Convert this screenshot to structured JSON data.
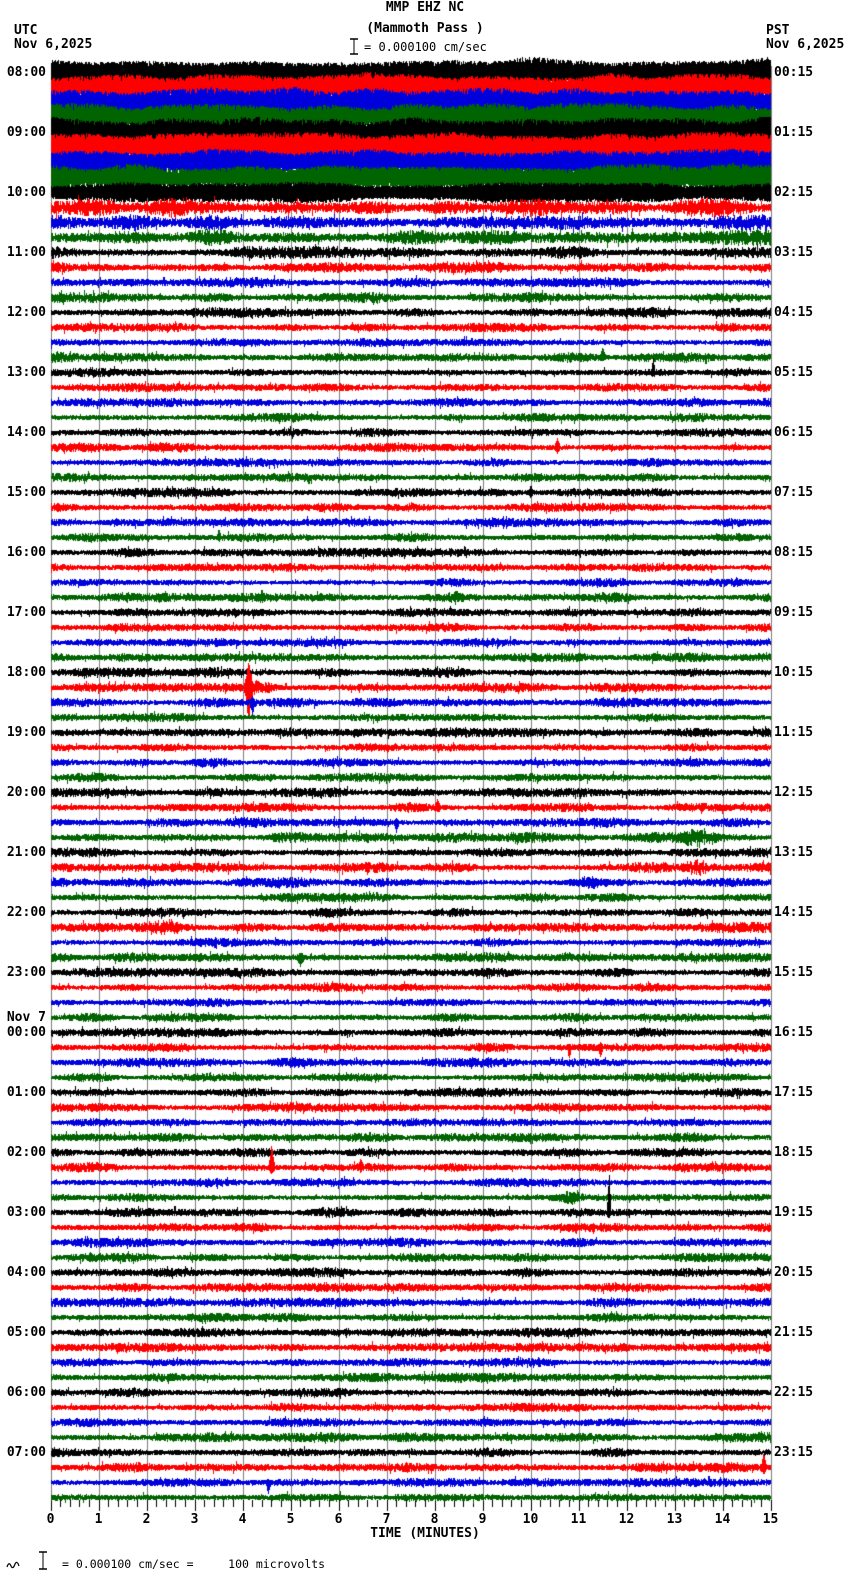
{
  "header": {
    "title": "MMP EHZ NC",
    "subtitle": "(Mammoth Pass )",
    "scale_label": "= 0.000100 cm/sec",
    "left_timezone": "UTC",
    "left_date": "Nov 6,2025",
    "right_timezone": "PST",
    "right_date": "Nov 6,2025"
  },
  "x_axis": {
    "title": "TIME (MINUTES)",
    "tick_labels": [
      "0",
      "1",
      "2",
      "3",
      "4",
      "5",
      "6",
      "7",
      "8",
      "9",
      "10",
      "11",
      "12",
      "13",
      "14",
      "15"
    ]
  },
  "footer": {
    "text": "= 0.000100 cm/sec =     100 microvolts"
  },
  "colors": {
    "traces": [
      "#000000",
      "#ff0000",
      "#0000dd",
      "#006400"
    ],
    "grid": "#7d7d7d",
    "background": "#ffffff",
    "text": "#000000"
  },
  "chart_data": {
    "type": "line",
    "kind": "helicorder-seismogram",
    "station": "MMP",
    "channel": "EHZ",
    "network": "NC",
    "station_name": "Mammoth Pass",
    "start_utc": "Nov 6,2025 08:00",
    "end_utc": "Nov 7,2025 08:00",
    "minutes_per_trace": 15,
    "traces_per_row": 4,
    "trace_color_order": [
      "black",
      "red",
      "blue",
      "green"
    ],
    "x_range_minutes": [
      0,
      15
    ],
    "grid": true,
    "amplitude_scale": "0.000100 cm/sec = 100 microvolts",
    "rows": [
      {
        "utc": "08:00",
        "pst": "00:15",
        "amps": [
          13,
          13,
          13,
          12.5
        ],
        "level": "very high"
      },
      {
        "utc": "09:00",
        "pst": "01:15",
        "amps": [
          14,
          13.5,
          12.5,
          11.5
        ],
        "level": "very high"
      },
      {
        "utc": "10:00",
        "pst": "02:15",
        "amps": [
          8.5,
          5,
          4,
          4.2
        ],
        "level": "high, decaying"
      },
      {
        "utc": "11:00",
        "pst": "03:15",
        "amps": [
          3.4,
          3,
          2.8,
          2.8
        ],
        "level": "moderate"
      },
      {
        "utc": "12:00",
        "pst": "04:15",
        "amps": [
          2.6,
          2.4,
          2.4,
          2.5
        ],
        "level": "low"
      },
      {
        "utc": "13:00",
        "pst": "05:15",
        "amps": [
          2.4,
          2.4,
          2.4,
          2.4
        ],
        "level": "low"
      },
      {
        "utc": "14:00",
        "pst": "06:15",
        "amps": [
          2.4,
          2.6,
          2.4,
          2.4
        ],
        "level": "low"
      },
      {
        "utc": "15:00",
        "pst": "07:15",
        "amps": [
          2.5,
          2.4,
          2.4,
          2.4
        ],
        "level": "low"
      },
      {
        "utc": "16:00",
        "pst": "08:15",
        "amps": [
          2.4,
          2.2,
          2.2,
          2.6
        ],
        "level": "low"
      },
      {
        "utc": "17:00",
        "pst": "09:15",
        "amps": [
          2.6,
          2.4,
          2.4,
          2.4
        ],
        "level": "low"
      },
      {
        "utc": "18:00",
        "pst": "10:15",
        "amps": [
          2.6,
          2.6,
          2.6,
          2.4
        ],
        "level": "low"
      },
      {
        "utc": "19:00",
        "pst": "11:15",
        "amps": [
          2.6,
          2.4,
          2.4,
          2.4
        ],
        "level": "low"
      },
      {
        "utc": "20:00",
        "pst": "12:15",
        "amps": [
          2.4,
          2.6,
          2.6,
          2.8
        ],
        "level": "low"
      },
      {
        "utc": "21:00",
        "pst": "13:15",
        "amps": [
          2.4,
          2.8,
          2.6,
          2.4
        ],
        "level": "low"
      },
      {
        "utc": "22:00",
        "pst": "14:15",
        "amps": [
          2.4,
          2.8,
          2.4,
          2.6
        ],
        "level": "low"
      },
      {
        "utc": "23:00",
        "pst": "15:15",
        "amps": [
          2.4,
          2.4,
          2.4,
          2.4
        ],
        "level": "low"
      },
      {
        "day": "Nov 7",
        "utc": "00:00",
        "pst": "16:15",
        "amps": [
          2.4,
          2.4,
          2.4,
          2.2
        ],
        "level": "low"
      },
      {
        "utc": "01:00",
        "pst": "17:15",
        "amps": [
          2.4,
          2.4,
          2.2,
          2.4
        ],
        "level": "low"
      },
      {
        "utc": "02:00",
        "pst": "18:15",
        "amps": [
          2.4,
          2.6,
          2.4,
          2.4
        ],
        "level": "low"
      },
      {
        "utc": "03:00",
        "pst": "19:15",
        "amps": [
          2.6,
          2.4,
          2.4,
          2.4
        ],
        "level": "low"
      },
      {
        "utc": "04:00",
        "pst": "20:15",
        "amps": [
          2.4,
          2.4,
          2.4,
          2.4
        ],
        "level": "low"
      },
      {
        "utc": "05:00",
        "pst": "21:15",
        "amps": [
          2.4,
          2.4,
          2.4,
          2.4
        ],
        "level": "low"
      },
      {
        "utc": "06:00",
        "pst": "22:15",
        "amps": [
          2.4,
          2.4,
          2.4,
          2.4
        ],
        "level": "low"
      },
      {
        "utc": "07:00",
        "pst": "23:15",
        "amps": [
          2.4,
          2.6,
          2.4,
          2.4
        ],
        "level": "low"
      }
    ],
    "events": [
      {
        "row": 2,
        "trace": 3,
        "min": 1.7,
        "kind": "burst",
        "amp": 3,
        "sigma": 18
      },
      {
        "row": 2,
        "trace": 1,
        "min": 13.9,
        "kind": "burst",
        "amp": 4,
        "sigma": 16
      },
      {
        "row": 4,
        "trace": 3,
        "min": 11.5,
        "kind": "spike",
        "up": 9,
        "dn": 2,
        "w": 3
      },
      {
        "row": 5,
        "trace": 0,
        "min": 12.55,
        "kind": "spike",
        "up": 12,
        "dn": 2,
        "w": 2
      },
      {
        "row": 6,
        "trace": 1,
        "min": 10.55,
        "kind": "spike",
        "up": 8,
        "dn": 4,
        "w": 3
      },
      {
        "row": 7,
        "trace": 0,
        "min": 10.0,
        "kind": "spike",
        "up": 5,
        "dn": 4,
        "w": 2
      },
      {
        "row": 7,
        "trace": 3,
        "min": 3.5,
        "kind": "spike",
        "up": 6,
        "dn": 2,
        "w": 2
      },
      {
        "row": 8,
        "trace": 3,
        "min": 4.4,
        "kind": "spike",
        "up": 5,
        "dn": 2,
        "w": 2
      },
      {
        "row": 8,
        "trace": 3,
        "min": 8.4,
        "kind": "burst",
        "amp": 4,
        "sigma": 6
      },
      {
        "row": 10,
        "trace": 1,
        "min": 4.12,
        "kind": "spike",
        "up": 24,
        "dn": 30,
        "w": 4
      },
      {
        "row": 10,
        "trace": 1,
        "min": 4.3,
        "kind": "burst",
        "amp": 5,
        "sigma": 12
      },
      {
        "row": 10,
        "trace": 2,
        "min": 4.2,
        "kind": "spike",
        "up": 4,
        "dn": 10,
        "w": 3
      },
      {
        "row": 12,
        "trace": 1,
        "min": 8.05,
        "kind": "spike",
        "up": 7,
        "dn": 2,
        "w": 3
      },
      {
        "row": 12,
        "trace": 2,
        "min": 7.2,
        "kind": "spike",
        "up": 2,
        "dn": 8,
        "w": 3
      },
      {
        "row": 12,
        "trace": 3,
        "min": 13.5,
        "kind": "burst",
        "amp": 7,
        "sigma": 12
      },
      {
        "row": 13,
        "trace": 1,
        "min": 13.45,
        "kind": "burst",
        "amp": 7,
        "sigma": 8
      },
      {
        "row": 13,
        "trace": 2,
        "min": 11.2,
        "kind": "burst",
        "amp": 5,
        "sigma": 8
      },
      {
        "row": 14,
        "trace": 1,
        "min": 2.35,
        "kind": "burst",
        "amp": 7,
        "sigma": 12
      },
      {
        "row": 14,
        "trace": 3,
        "min": 5.2,
        "kind": "spike",
        "up": 3,
        "dn": 7,
        "w": 4
      },
      {
        "row": 16,
        "trace": 1,
        "min": 10.8,
        "kind": "spike",
        "up": 2,
        "dn": 10,
        "w": 2
      },
      {
        "row": 16,
        "trace": 1,
        "min": 11.45,
        "kind": "spike",
        "up": 2,
        "dn": 7,
        "w": 2
      },
      {
        "row": 18,
        "trace": 1,
        "min": 4.6,
        "kind": "spike",
        "up": 22,
        "dn": 6,
        "w": 3
      },
      {
        "row": 18,
        "trace": 1,
        "min": 6.45,
        "kind": "spike",
        "up": 7,
        "dn": 2,
        "w": 2
      },
      {
        "row": 18,
        "trace": 3,
        "min": 10.8,
        "kind": "burst",
        "amp": 5,
        "sigma": 6
      },
      {
        "row": 19,
        "trace": 0,
        "min": 11.63,
        "kind": "spike",
        "up": 40,
        "dn": 3,
        "w": 2
      },
      {
        "row": 23,
        "trace": 1,
        "min": 14.85,
        "kind": "spike",
        "up": 12,
        "dn": 5,
        "w": 3
      },
      {
        "row": 23,
        "trace": 2,
        "min": 4.53,
        "kind": "spike",
        "up": 2,
        "dn": 9,
        "w": 3
      }
    ]
  }
}
